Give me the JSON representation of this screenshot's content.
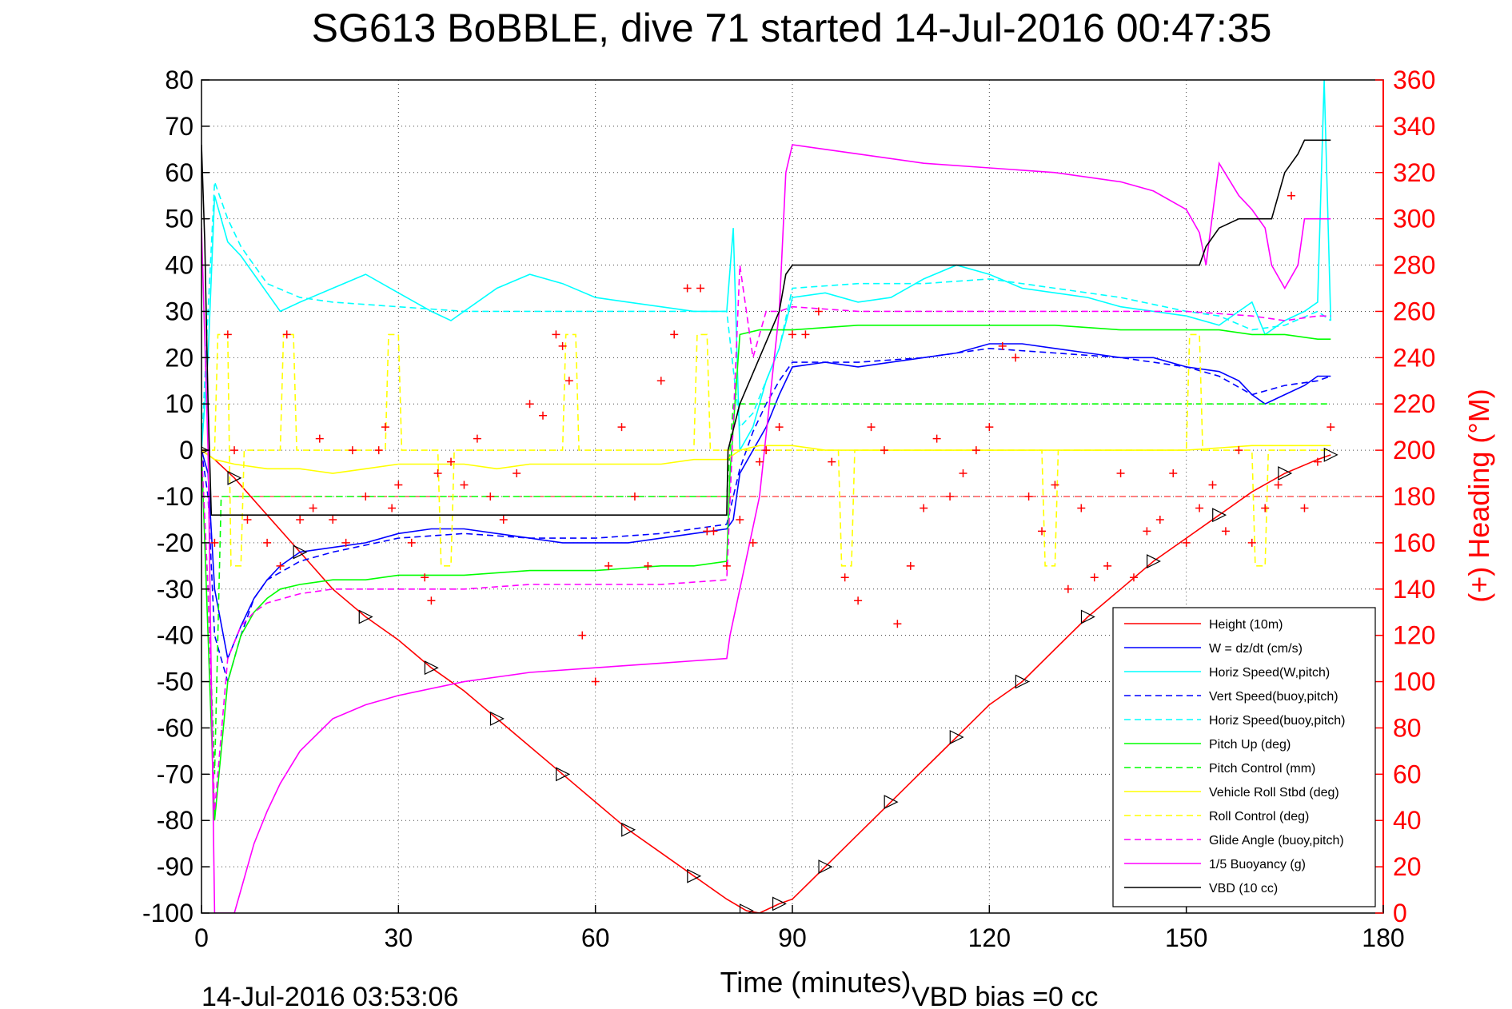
{
  "chart_data": {
    "type": "line",
    "title": "SG613 BoBBLE, dive 71 started 14-Jul-2016 00:47:35",
    "xlabel": "Time (minutes)",
    "ylabel_right": "(+) Heading (°M)",
    "xlim": [
      0,
      180
    ],
    "ylim": [
      -100,
      80
    ],
    "ylim_right": [
      0,
      360
    ],
    "xticks": [
      "0",
      "30",
      "60",
      "90",
      "120",
      "150",
      "180"
    ],
    "yticks": [
      "80",
      "70",
      "60",
      "50",
      "40",
      "30",
      "20",
      "10",
      "0",
      "-10",
      "-20",
      "-30",
      "-40",
      "-50",
      "-60",
      "-70",
      "-80",
      "-90",
      "-100"
    ],
    "yticks_right": [
      "360",
      "340",
      "320",
      "300",
      "280",
      "260",
      "240",
      "220",
      "200",
      "180",
      "160",
      "140",
      "120",
      "100",
      "80",
      "60",
      "40",
      "20",
      "0"
    ],
    "grid": true,
    "legend_position": "lower-right",
    "footer_left": "14-Jul-2016 03:53:06",
    "footer_right": "VBD bias =0 cc",
    "colors": {
      "axis_right": "#ff0000",
      "heading_marker": "#ff0000"
    },
    "series": [
      {
        "name": "Height (10m)",
        "color": "#ff0000",
        "dash": "solid",
        "x": [
          0,
          2,
          5,
          10,
          15,
          20,
          25,
          30,
          35,
          40,
          45,
          50,
          55,
          60,
          65,
          70,
          75,
          80,
          83,
          85,
          88,
          90,
          95,
          100,
          105,
          110,
          115,
          120,
          125,
          130,
          135,
          140,
          145,
          150,
          155,
          160,
          165,
          170,
          172
        ],
        "y": [
          0,
          -2,
          -6,
          -14,
          -22,
          -30,
          -36,
          -41,
          -47,
          -52,
          -58,
          -64,
          -70,
          -76,
          -82,
          -87,
          -92,
          -97,
          -99.5,
          -100,
          -98,
          -97,
          -90,
          -83,
          -76,
          -69,
          -62,
          -55,
          -50,
          -43,
          -36,
          -30,
          -24,
          -19,
          -14,
          -9,
          -5,
          -2,
          -1
        ]
      },
      {
        "name": "W = dz/dt (cm/s)",
        "color": "#0000ff",
        "dash": "solid",
        "x": [
          0,
          1,
          2,
          4,
          6,
          8,
          10,
          12,
          15,
          20,
          25,
          30,
          35,
          40,
          45,
          50,
          55,
          60,
          65,
          70,
          75,
          80,
          81,
          82,
          84,
          86,
          88,
          90,
          95,
          100,
          105,
          110,
          115,
          120,
          125,
          130,
          135,
          140,
          145,
          150,
          155,
          158,
          160,
          162,
          165,
          168,
          170,
          172
        ],
        "y": [
          0,
          -5,
          -30,
          -45,
          -38,
          -32,
          -28,
          -25,
          -22,
          -21,
          -20,
          -18,
          -17,
          -17,
          -18,
          -19,
          -20,
          -20,
          -20,
          -19,
          -18,
          -17,
          -15,
          -5,
          0,
          5,
          12,
          18,
          19,
          18,
          19,
          20,
          21,
          23,
          23,
          22,
          21,
          20,
          20,
          18,
          17,
          15,
          12,
          10,
          12,
          14,
          16,
          16
        ]
      },
      {
        "name": "Horiz Speed(W,pitch)",
        "color": "#00ffff",
        "dash": "solid",
        "x": [
          0,
          1,
          2,
          4,
          6,
          8,
          10,
          12,
          15,
          20,
          25,
          30,
          35,
          38,
          40,
          45,
          50,
          55,
          60,
          65,
          70,
          75,
          80,
          81,
          82,
          84,
          86,
          88,
          90,
          95,
          100,
          105,
          110,
          115,
          120,
          125,
          130,
          135,
          140,
          145,
          150,
          155,
          158,
          160,
          162,
          165,
          168,
          170,
          171,
          172
        ],
        "y": [
          0,
          20,
          55,
          45,
          42,
          38,
          34,
          30,
          32,
          35,
          38,
          34,
          30,
          28,
          30,
          35,
          38,
          36,
          33,
          32,
          31,
          30,
          30,
          48,
          0,
          5,
          15,
          22,
          33,
          34,
          32,
          33,
          37,
          40,
          38,
          35,
          34,
          33,
          31,
          30,
          29,
          27,
          30,
          32,
          25,
          28,
          30,
          32,
          80,
          28
        ]
      },
      {
        "name": "Vert Speed(buoy,pitch)",
        "color": "#0000ff",
        "dash": "dashed",
        "x": [
          0,
          1,
          2,
          4,
          6,
          8,
          10,
          15,
          20,
          30,
          40,
          50,
          60,
          70,
          80,
          82,
          84,
          86,
          88,
          90,
          100,
          110,
          120,
          130,
          140,
          150,
          155,
          160,
          165,
          170,
          172
        ],
        "y": [
          0,
          -10,
          -40,
          -50,
          -40,
          -32,
          -28,
          -24,
          -22,
          -19,
          -18,
          -19,
          -19,
          -18,
          -16,
          -4,
          4,
          10,
          15,
          19,
          19,
          20,
          22,
          21,
          20,
          18,
          16,
          12,
          14,
          15,
          16
        ]
      },
      {
        "name": "Horiz Speed(buoy,pitch)",
        "color": "#00ffff",
        "dash": "dashed",
        "x": [
          0,
          1,
          2,
          4,
          6,
          8,
          10,
          15,
          20,
          30,
          40,
          50,
          60,
          70,
          80,
          82,
          84,
          86,
          88,
          90,
          100,
          110,
          120,
          130,
          140,
          150,
          155,
          160,
          165,
          170,
          172
        ],
        "y": [
          0,
          30,
          58,
          50,
          44,
          40,
          36,
          33,
          32,
          31,
          30,
          30,
          30,
          30,
          30,
          5,
          8,
          15,
          22,
          35,
          36,
          36,
          37,
          35,
          33,
          30,
          29,
          26,
          27,
          30,
          28
        ]
      },
      {
        "name": "Pitch Up (deg)",
        "color": "#00ff00",
        "dash": "solid",
        "x": [
          0,
          1,
          2,
          4,
          6,
          8,
          10,
          12,
          15,
          20,
          25,
          30,
          40,
          50,
          60,
          70,
          75,
          80,
          80.5,
          82,
          85,
          90,
          100,
          110,
          120,
          130,
          140,
          150,
          155,
          160,
          165,
          170,
          172
        ],
        "y": [
          0,
          -40,
          -80,
          -50,
          -40,
          -35,
          -32,
          -30,
          -29,
          -28,
          -28,
          -27,
          -27,
          -26,
          -26,
          -25,
          -25,
          -24,
          -5,
          25,
          26,
          26,
          27,
          27,
          27,
          27,
          26,
          26,
          26,
          25,
          25,
          24,
          24
        ]
      },
      {
        "name": "Pitch Control (mm)",
        "color": "#00ff00",
        "dash": "dashed",
        "x": [
          0,
          1,
          2,
          3,
          5,
          10,
          20,
          40,
          60,
          80,
          80.5,
          81,
          90,
          110,
          130,
          150,
          170,
          172
        ],
        "y": [
          0,
          -30,
          -70,
          -10,
          -10,
          -10,
          -10,
          -10,
          -10,
          -10,
          0,
          10,
          10,
          10,
          10,
          10,
          10,
          10
        ]
      },
      {
        "name": "Vehicle Roll Stbd (deg)",
        "color": "#ffff00",
        "dash": "solid",
        "x": [
          0,
          2,
          5,
          10,
          15,
          20,
          25,
          30,
          35,
          40,
          45,
          50,
          55,
          60,
          65,
          70,
          75,
          80,
          82,
          85,
          90,
          95,
          100,
          110,
          120,
          130,
          140,
          150,
          160,
          170,
          172
        ],
        "y": [
          0,
          -2,
          -3,
          -4,
          -4,
          -5,
          -4,
          -3,
          -3,
          -3,
          -4,
          -3,
          -3,
          -3,
          -3,
          -3,
          -2,
          -2,
          0,
          1,
          1,
          0,
          0,
          0,
          0,
          0,
          0,
          0,
          1,
          1,
          1
        ]
      },
      {
        "name": "Roll Control (deg)",
        "color": "#ffff00",
        "dash": "dashed",
        "x": [
          0,
          2,
          2.5,
          4,
          4.5,
          6,
          6.5,
          12,
          12.5,
          14,
          14.5,
          28,
          28.5,
          30,
          30.5,
          36,
          36.5,
          38,
          38.5,
          55,
          55.5,
          57,
          57.5,
          75,
          75.5,
          77,
          77.5,
          80,
          80.5,
          97,
          97.5,
          99,
          99.5,
          128,
          128.5,
          130,
          130.5,
          150,
          150.5,
          152,
          152.5,
          160,
          160.5,
          162,
          162.5,
          172
        ],
        "y": [
          0,
          0,
          25,
          25,
          -25,
          -25,
          0,
          0,
          25,
          25,
          0,
          0,
          25,
          25,
          0,
          0,
          -25,
          -25,
          0,
          0,
          25,
          25,
          0,
          0,
          25,
          25,
          0,
          0,
          0,
          0,
          -25,
          -25,
          0,
          0,
          -25,
          -25,
          0,
          0,
          25,
          25,
          0,
          0,
          -25,
          -25,
          0,
          0
        ]
      },
      {
        "name": "Glide Angle (buoy,pitch)",
        "color": "#ff00ff",
        "dash": "dashed",
        "x": [
          0,
          1,
          2,
          4,
          6,
          8,
          10,
          15,
          20,
          30,
          40,
          50,
          60,
          70,
          80,
          82,
          84,
          86,
          88,
          90,
          100,
          110,
          120,
          130,
          140,
          150,
          160,
          165,
          170,
          172
        ],
        "y": [
          0,
          -30,
          -78,
          -45,
          -38,
          -35,
          -33,
          -31,
          -30,
          -30,
          -30,
          -29,
          -29,
          -29,
          -28,
          40,
          20,
          30,
          30,
          31,
          30,
          30,
          30,
          30,
          30,
          30,
          29,
          28,
          29,
          29
        ]
      },
      {
        "name": "1/5 Buoyancy (g)",
        "color": "#ff00ff",
        "dash": "solid",
        "x": [
          0,
          1,
          2,
          3,
          4,
          5,
          6,
          8,
          10,
          12,
          15,
          20,
          25,
          30,
          40,
          50,
          60,
          70,
          75,
          80,
          80.5,
          82,
          85,
          88,
          89,
          90,
          95,
          100,
          110,
          120,
          130,
          140,
          145,
          150,
          152,
          153,
          155,
          158,
          160,
          162,
          163,
          165,
          167,
          168,
          170,
          172
        ],
        "y": [
          48,
          0,
          -100,
          -100,
          -100,
          -100,
          -95,
          -85,
          -78,
          -72,
          -65,
          -58,
          -55,
          -53,
          -50,
          -48,
          -47,
          -46,
          -45.5,
          -45,
          -40,
          -30,
          -10,
          30,
          60,
          66,
          65,
          64,
          62,
          61,
          60,
          58,
          56,
          52,
          47,
          40,
          62,
          55,
          52,
          48,
          40,
          35,
          40,
          50,
          50,
          50
        ]
      },
      {
        "name": "VBD (10 cc)",
        "color": "#000000",
        "dash": "solid",
        "x": [
          0,
          0.5,
          1,
          1.5,
          2,
          5,
          10,
          20,
          40,
          60,
          80,
          80.2,
          82,
          85,
          88,
          89,
          90,
          100,
          120,
          150,
          151,
          152,
          153,
          155,
          158,
          160,
          163,
          165,
          167,
          168,
          170,
          172
        ],
        "y": [
          66,
          45,
          10,
          -14,
          -14,
          -14,
          -14,
          -14,
          -14,
          -14,
          -14,
          0,
          10,
          20,
          30,
          38,
          40,
          40,
          40,
          40,
          40,
          40,
          44,
          48,
          50,
          50,
          50,
          60,
          64,
          67,
          67,
          67
        ]
      }
    ],
    "heading": {
      "name": "(+) Heading (°M)",
      "color": "#ff0000",
      "marker": "+",
      "x": [
        0,
        2,
        4,
        5,
        7,
        10,
        12,
        13,
        15,
        17,
        18,
        20,
        22,
        23,
        25,
        27,
        28,
        29,
        30,
        32,
        34,
        35,
        36,
        38,
        40,
        42,
        44,
        46,
        48,
        50,
        52,
        54,
        55,
        56,
        58,
        60,
        62,
        64,
        66,
        68,
        70,
        72,
        74,
        76,
        77,
        78,
        80,
        82,
        84,
        85,
        86,
        88,
        90,
        92,
        94,
        96,
        98,
        100,
        102,
        104,
        106,
        108,
        110,
        112,
        114,
        116,
        118,
        120,
        122,
        124,
        126,
        128,
        130,
        132,
        134,
        136,
        138,
        140,
        142,
        144,
        146,
        148,
        150,
        152,
        154,
        156,
        158,
        160,
        162,
        164,
        166,
        168,
        170,
        172
      ],
      "y": [
        200,
        160,
        250,
        200,
        170,
        160,
        150,
        250,
        170,
        175,
        205,
        170,
        160,
        200,
        180,
        200,
        210,
        175,
        185,
        160,
        145,
        135,
        190,
        195,
        185,
        205,
        180,
        170,
        190,
        220,
        215,
        250,
        245,
        230,
        120,
        100,
        150,
        210,
        180,
        150,
        230,
        250,
        270,
        270,
        165,
        165,
        150,
        170,
        160,
        195,
        200,
        210,
        250,
        250,
        260,
        195,
        145,
        135,
        210,
        200,
        125,
        150,
        175,
        205,
        180,
        190,
        200,
        210,
        245,
        240,
        180,
        165,
        185,
        140,
        175,
        145,
        150,
        190,
        145,
        165,
        170,
        190,
        160,
        175,
        185,
        165,
        200,
        160,
        175,
        185,
        310,
        175,
        195,
        210
      ]
    }
  }
}
